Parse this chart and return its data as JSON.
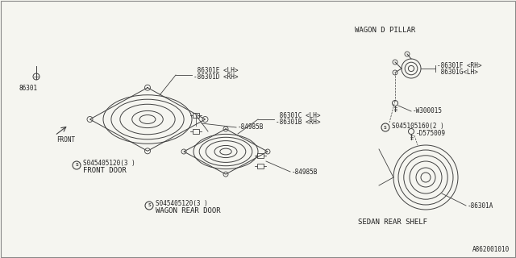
{
  "bg_color": "#f5f5f0",
  "line_color": "#404040",
  "text_color": "#202020",
  "font_size": 5.5,
  "font_size_title": 6.5,
  "diagram_id": "A862001010",
  "labels": {
    "front_door_screw": "86301",
    "front_door_label1": "-86301D <RH>",
    "front_door_label2": " 86301E <LH>",
    "front_door_connector": "-84985B",
    "front_door_bolt": "S045405120(3 )",
    "front_door_text": "FRONT DOOR",
    "wagon_rear_label1": "-86301B <RH>",
    "wagon_rear_label2": " 86301C <LH>",
    "wagon_rear_connector": "-84985B",
    "wagon_rear_bolt": "S045405120(3 )",
    "wagon_rear_text": "WAGON REAR DOOR",
    "wagon_pillar_title": "WAGON D PILLAR",
    "wagon_pillar_label1": "-86301F <RH>",
    "wagon_pillar_label2": " 86301G<LH>",
    "wagon_pillar_bolt": "-W300015",
    "wagon_pillar_screw": "S045105160(2 )",
    "sedan_screw": "-D575009",
    "sedan_label": "-86301A",
    "sedan_text": "SEDAN REAR SHELF",
    "front_arrow": "FRONT"
  }
}
